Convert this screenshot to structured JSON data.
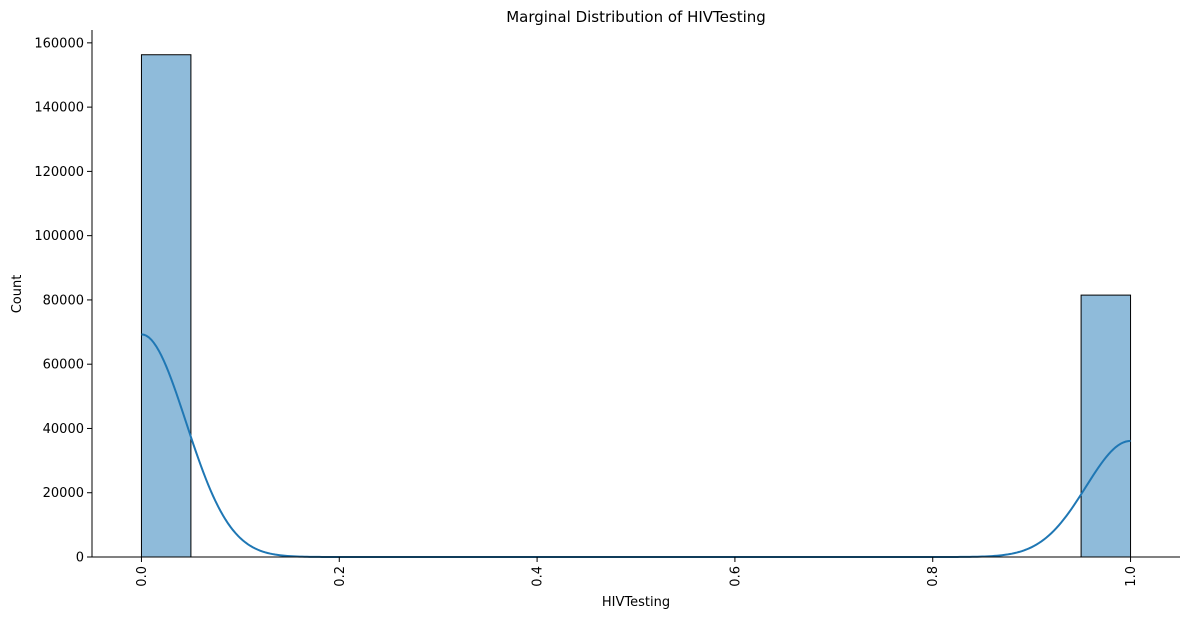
{
  "chart_data": {
    "type": "histogram",
    "title": "Marginal Distribution of HIVTesting",
    "xlabel": "HIVTesting",
    "ylabel": "Count",
    "xlim": [
      -0.05,
      1.05
    ],
    "ylim": [
      0,
      164000
    ],
    "x_ticks": [
      0.0,
      0.2,
      0.4,
      0.6,
      0.8,
      1.0
    ],
    "x_tick_labels": [
      "0.0",
      "0.2",
      "0.4",
      "0.6",
      "0.8",
      "1.0"
    ],
    "x_tick_rotation": -90,
    "y_ticks": [
      0,
      20000,
      40000,
      60000,
      80000,
      100000,
      120000,
      140000,
      160000
    ],
    "y_tick_labels": [
      "0",
      "20000",
      "40000",
      "60000",
      "80000",
      "100000",
      "120000",
      "140000",
      "160000"
    ],
    "bins": [
      {
        "x0": 0.0,
        "x1": 0.05,
        "count": 156300
      },
      {
        "x0": 0.95,
        "x1": 1.0,
        "count": 81500
      }
    ],
    "kde_color": "#1f77b4",
    "bar_color": "#8fbbda",
    "grid": false,
    "spines": "left-bottom"
  }
}
